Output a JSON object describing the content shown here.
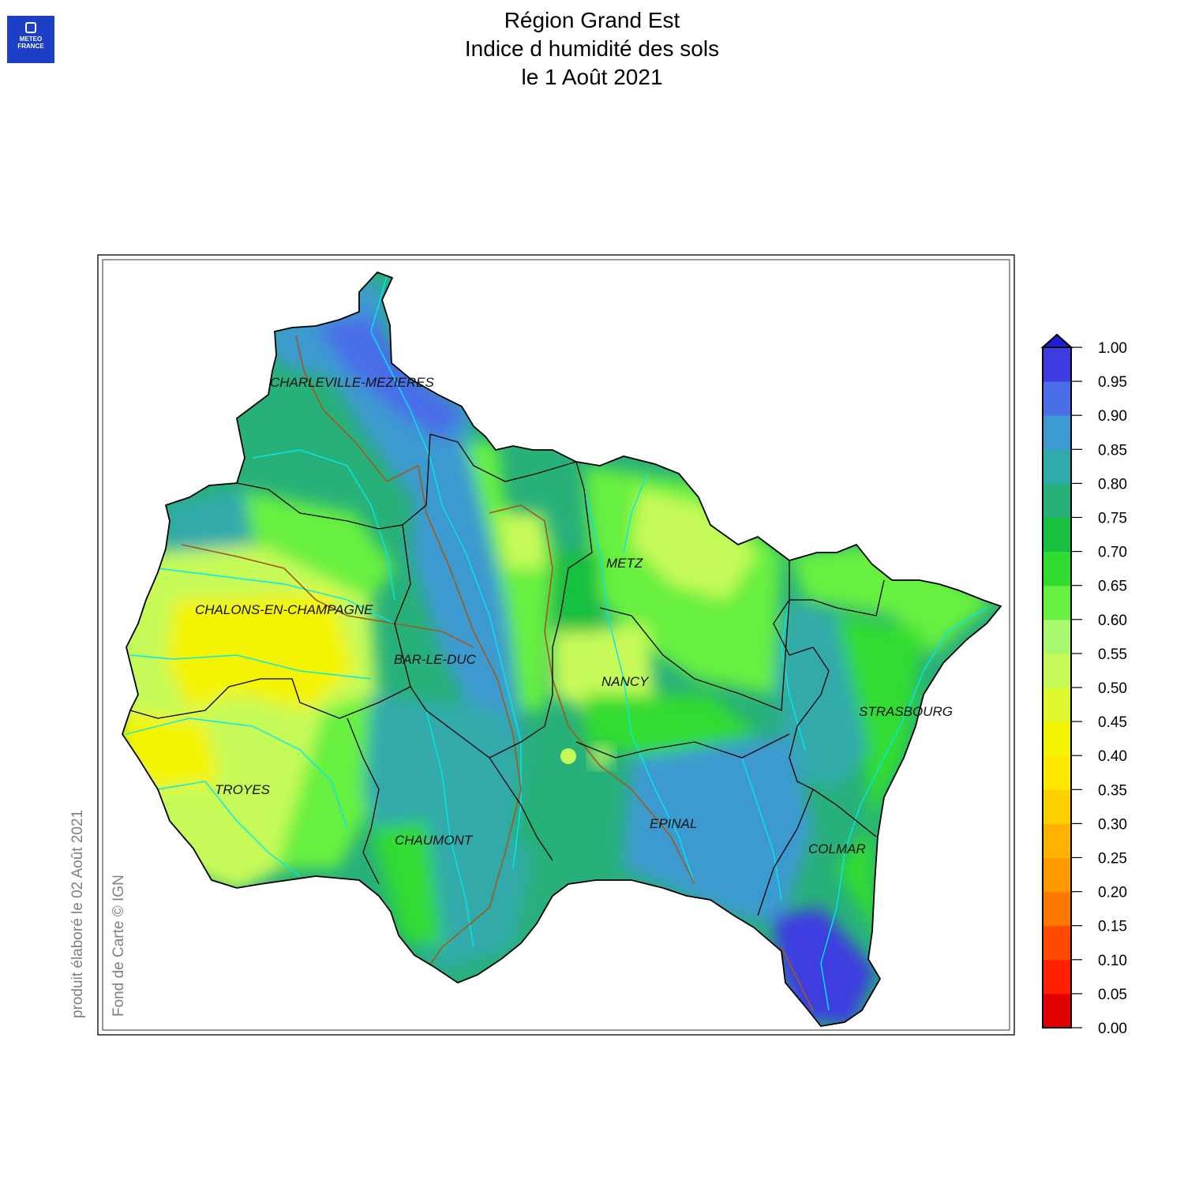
{
  "logo": {
    "line1": "METEO",
    "line2": "FRANCE"
  },
  "title": {
    "line1": "Région Grand Est",
    "line2": "Indice d humidité des sols",
    "line3": "le 1 Août 2021"
  },
  "side_notes": {
    "produced": "produit élaboré le 02 Août 2021",
    "basemap": "Fond de Carte © IGN"
  },
  "cities": [
    {
      "name": "CHARLEVILLE-MEZIERES"
    },
    {
      "name": "METZ"
    },
    {
      "name": "CHALONS-EN-CHAMPAGNE"
    },
    {
      "name": "BAR-LE-DUC"
    },
    {
      "name": "NANCY"
    },
    {
      "name": "STRASBOURG"
    },
    {
      "name": "TROYES"
    },
    {
      "name": "CHAUMONT"
    },
    {
      "name": "EPINAL"
    },
    {
      "name": "COLMAR"
    }
  ],
  "legend": {
    "ticks": [
      "0.00",
      "0.05",
      "0.10",
      "0.15",
      "0.20",
      "0.25",
      "0.30",
      "0.35",
      "0.40",
      "0.45",
      "0.50",
      "0.55",
      "0.60",
      "0.65",
      "0.70",
      "0.75",
      "0.80",
      "0.85",
      "0.90",
      "0.95",
      "1.00"
    ],
    "colors": [
      "#e00000",
      "#ff2000",
      "#ff4a00",
      "#ff7800",
      "#ff9a00",
      "#ffb200",
      "#ffd000",
      "#ffe800",
      "#f4f400",
      "#e0f830",
      "#c6fa58",
      "#a8f870",
      "#68f040",
      "#30dc30",
      "#18c040",
      "#28b07a",
      "#30aaaa",
      "#3c9ad0",
      "#4a6ee8",
      "#3c3ce0"
    ],
    "overflow_color": "#1e1ed8"
  },
  "colors": {
    "region_border": "#000000",
    "department_border": "#000000",
    "river": "#00e8f0",
    "canal": "#a05a1e"
  }
}
